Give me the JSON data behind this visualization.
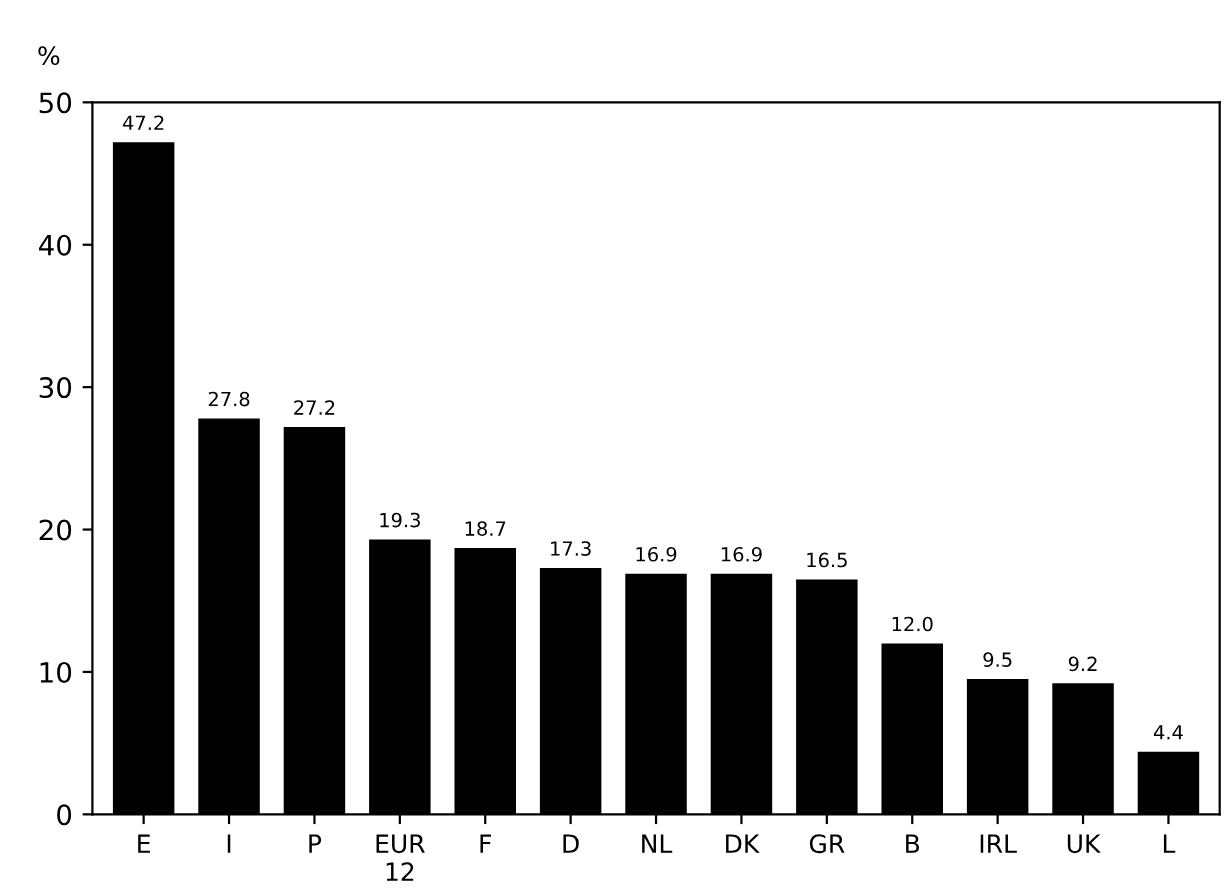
{
  "chart_data": {
    "type": "bar",
    "ylabel": "%",
    "categories": [
      "E",
      "I",
      "P",
      "EUR\n12",
      "F",
      "D",
      "NL",
      "DK",
      "GR",
      "B",
      "IRL",
      "UK",
      "L"
    ],
    "values": [
      47.2,
      27.8,
      27.2,
      19.3,
      18.7,
      17.3,
      16.9,
      16.9,
      16.5,
      12.0,
      9.5,
      9.2,
      4.4
    ],
    "value_labels": [
      "47.2",
      "27.8",
      "27.2",
      "19.3",
      "18.7",
      "17.3",
      "16.9",
      "16.9",
      "16.5",
      "12.0",
      "9.5",
      "9.2",
      "4.4"
    ],
    "color": "#000000",
    "ylim": [
      0,
      50
    ],
    "yticks": [
      0,
      10,
      20,
      30,
      40,
      50
    ],
    "grid": false
  }
}
